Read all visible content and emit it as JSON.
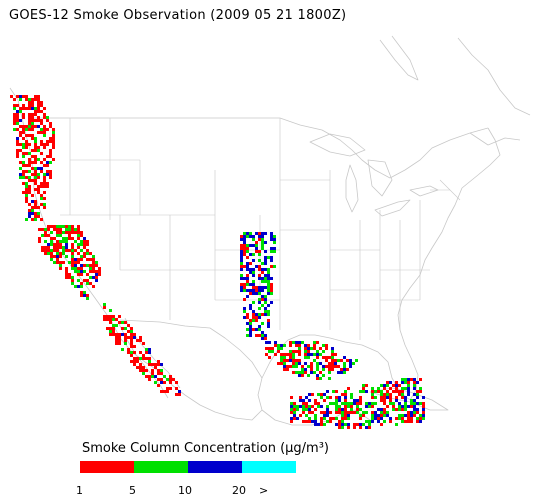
{
  "title": "GOES-12 Smoke Observation (2009 05 21  1800Z)",
  "legend": {
    "title": "Smoke Column Concentration (μg/m³)",
    "colors": [
      "#ff0000",
      "#00e000",
      "#0000cc",
      "#00ffff"
    ],
    "ticks": [
      "1",
      "5",
      "10",
      "20",
      ">"
    ]
  },
  "map": {
    "boundary_color": "#c8c8c8",
    "smoke_regions": [
      {
        "name": "pacific-northwest-coast",
        "level": "1-5"
      },
      {
        "name": "california-coast",
        "level": "1-5"
      },
      {
        "name": "baja-california",
        "level": "1-5"
      },
      {
        "name": "southern-plains",
        "level": "10-20"
      },
      {
        "name": "gulf-of-mexico",
        "level": "5-10"
      },
      {
        "name": "yucatan-cuba",
        "level": "1-5"
      }
    ]
  }
}
